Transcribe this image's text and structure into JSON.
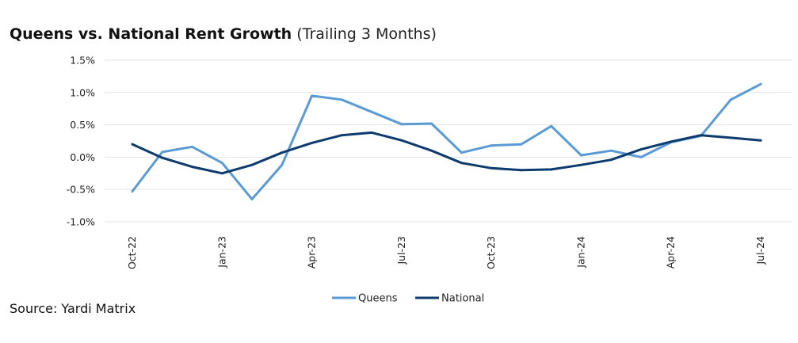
{
  "title": "Queens vs. National Rent Growth",
  "subtitle": "(Trailing 3 Months)",
  "source": "Source: Yardi Matrix",
  "colors": {
    "queens": "#5b9bd5",
    "national": "#0d3b6e",
    "grid": "#e3e3e3"
  },
  "chart_data": {
    "type": "line",
    "x": [
      "Oct-22",
      "Nov-22",
      "Dec-22",
      "Jan-23",
      "Feb-23",
      "Mar-23",
      "Apr-23",
      "May-23",
      "Jun-23",
      "Jul-23",
      "Aug-23",
      "Sep-23",
      "Oct-23",
      "Nov-23",
      "Dec-23",
      "Jan-24",
      "Feb-24",
      "Mar-24",
      "Apr-24",
      "May-24",
      "Jun-24",
      "Jul-24"
    ],
    "x_tick_labels": [
      "Oct-22",
      "Jan-23",
      "Apr-23",
      "Jul-23",
      "Oct-23",
      "Jan-24",
      "Apr-24",
      "Jul-24"
    ],
    "y_tick_labels": [
      "1.5%",
      "1.0%",
      "0.5%",
      "0.0%",
      "-0.5%",
      "-1.0%"
    ],
    "ylim": [
      -1.0,
      1.5
    ],
    "grid": true,
    "legend_position": "bottom-center",
    "series": [
      {
        "name": "Queens",
        "values": [
          -0.53,
          0.08,
          0.16,
          -0.09,
          -0.65,
          -0.12,
          0.95,
          0.89,
          0.7,
          0.51,
          0.52,
          0.07,
          0.18,
          0.2,
          0.48,
          0.03,
          0.1,
          0.0,
          0.23,
          0.33,
          0.89,
          1.13
        ]
      },
      {
        "name": "National",
        "values": [
          0.2,
          -0.01,
          -0.15,
          -0.25,
          -0.12,
          0.07,
          0.22,
          0.34,
          0.38,
          0.26,
          0.1,
          -0.09,
          -0.17,
          -0.2,
          -0.19,
          -0.12,
          -0.04,
          0.12,
          0.24,
          0.34,
          0.3,
          0.26
        ]
      }
    ]
  }
}
